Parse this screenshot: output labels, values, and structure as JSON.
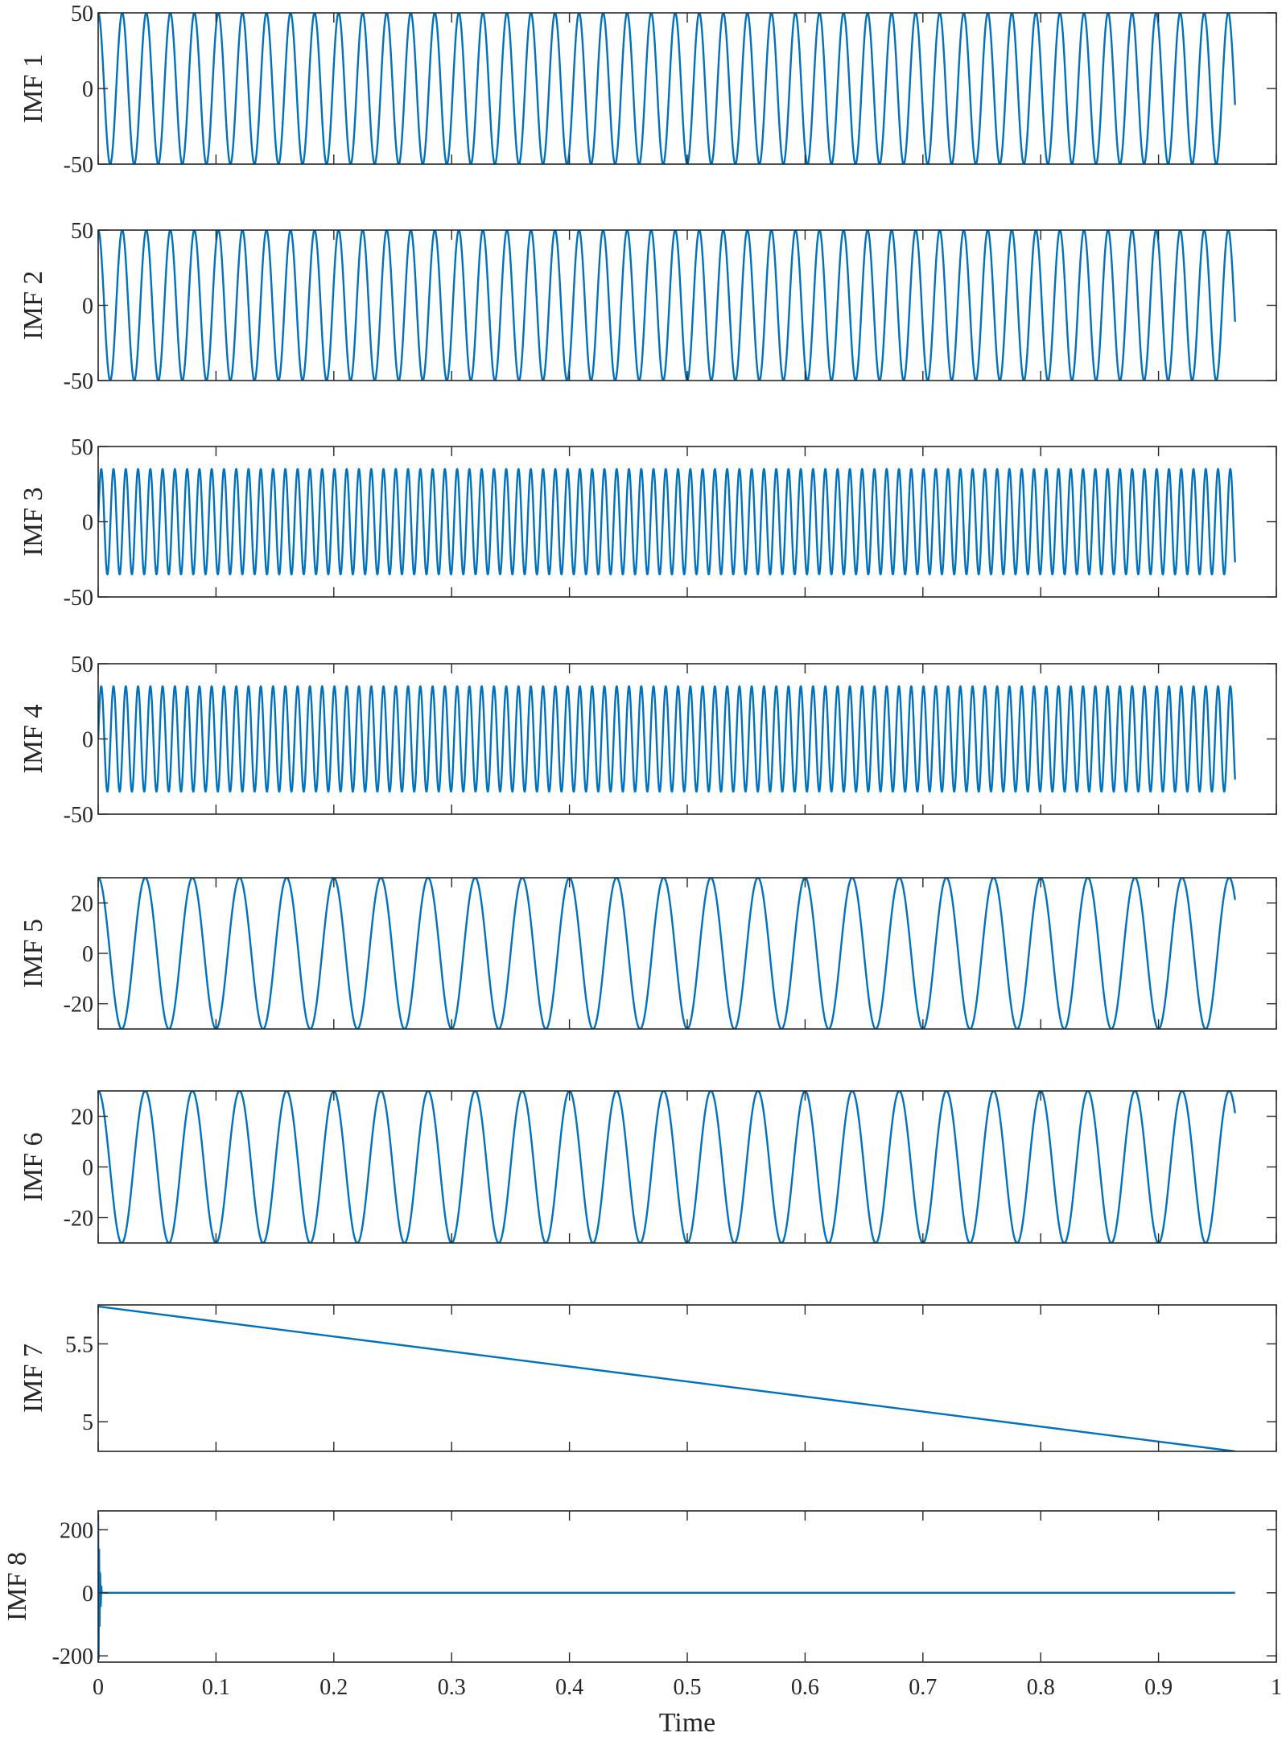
{
  "chart_data": {
    "type": "line",
    "layout": "stacked-subplots",
    "shared_x": {
      "label": "Time",
      "lim": [
        0,
        1
      ],
      "ticks": [
        0,
        0.1,
        0.2,
        0.3,
        0.4,
        0.5,
        0.6,
        0.7,
        0.8,
        0.9,
        1
      ],
      "tick_labels": [
        "0",
        "0.1",
        "0.2",
        "0.3",
        "0.4",
        "0.5",
        "0.6",
        "0.7",
        "0.8",
        "0.9",
        "1"
      ],
      "data_end": 0.965
    },
    "line_color": "#0072bd",
    "grid": false,
    "panels": [
      {
        "ylabel": "IMF 1",
        "ylim": [
          -50,
          50
        ],
        "yticks": [
          -50,
          0,
          50
        ],
        "ytick_labels": [
          "-50",
          "0",
          "50"
        ],
        "signal": {
          "kind": "sine",
          "amplitude": 50,
          "frequency": 49,
          "phase": 1.5708,
          "offset": 0
        }
      },
      {
        "ylabel": "IMF 2",
        "ylim": [
          -50,
          50
        ],
        "yticks": [
          -50,
          0,
          50
        ],
        "ytick_labels": [
          "-50",
          "0",
          "50"
        ],
        "signal": {
          "kind": "sine",
          "amplitude": 50,
          "frequency": 49,
          "phase": 1.5708,
          "offset": 0
        }
      },
      {
        "ylabel": "IMF 3",
        "ylim": [
          -50,
          50
        ],
        "yticks": [
          -50,
          0,
          50
        ],
        "ytick_labels": [
          "-50",
          "0",
          "50"
        ],
        "signal": {
          "kind": "sine",
          "amplitude": 35,
          "frequency": 96,
          "phase": 0,
          "offset": 0
        }
      },
      {
        "ylabel": "IMF 4",
        "ylim": [
          -50,
          50
        ],
        "yticks": [
          -50,
          0,
          50
        ],
        "ytick_labels": [
          "-50",
          "0",
          "50"
        ],
        "signal": {
          "kind": "sine",
          "amplitude": 35,
          "frequency": 96,
          "phase": 0,
          "offset": 0
        }
      },
      {
        "ylabel": "IMF 5",
        "ylim": [
          -30,
          30
        ],
        "yticks": [
          -20,
          0,
          20
        ],
        "ytick_labels": [
          "-20",
          "0",
          "20"
        ],
        "signal": {
          "kind": "sine",
          "amplitude": 30,
          "frequency": 25,
          "phase": 1.5708,
          "offset": 0
        }
      },
      {
        "ylabel": "IMF 6",
        "ylim": [
          -30,
          30
        ],
        "yticks": [
          -20,
          0,
          20
        ],
        "ytick_labels": [
          "-20",
          "0",
          "20"
        ],
        "signal": {
          "kind": "sine",
          "amplitude": 30,
          "frequency": 25,
          "phase": 1.5708,
          "offset": 0
        }
      },
      {
        "ylabel": "IMF 7",
        "ylim": [
          4.81,
          5.75
        ],
        "yticks": [
          5,
          5.5
        ],
        "ytick_labels": [
          "5",
          "5.5"
        ],
        "signal": {
          "kind": "linear",
          "start": 5.74,
          "end": 4.81
        }
      },
      {
        "ylabel": "IMF 8",
        "ylim": [
          -220,
          260
        ],
        "yticks": [
          -200,
          0,
          200
        ],
        "ytick_labels": [
          "-200",
          "0",
          "200"
        ],
        "signal": {
          "kind": "decaying-spike",
          "peak": 250,
          "trough": -210,
          "settle_x": 0.003,
          "offset": 0
        }
      }
    ]
  }
}
